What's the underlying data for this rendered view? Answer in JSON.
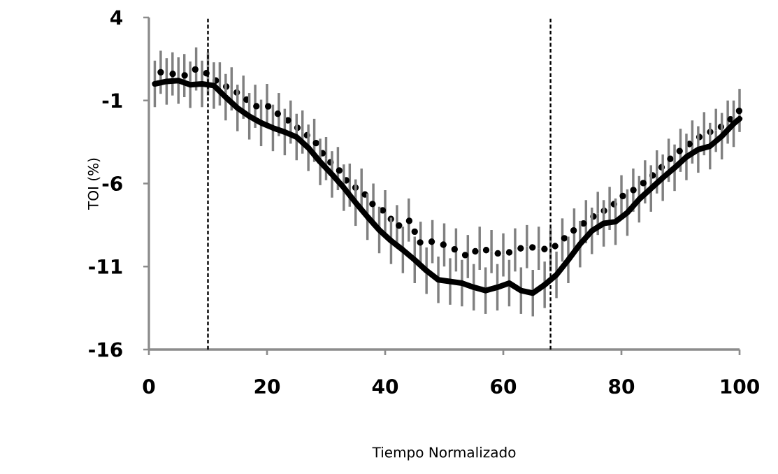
{
  "chart_data": {
    "type": "line",
    "xlabel": "Tiempo Normalizado",
    "ylabel": "TOI (%)",
    "xlim": [
      0,
      100
    ],
    "ylim": [
      -16,
      4
    ],
    "xticks": [
      0,
      20,
      40,
      60,
      80,
      100
    ],
    "yticks": [
      4,
      -1,
      -6,
      -11,
      -16
    ],
    "grid": false,
    "marker": "none",
    "ref_lines": [
      {
        "axis": "x",
        "value": 10,
        "color": "#000000",
        "line_style": "dashed"
      },
      {
        "axis": "x",
        "value": 68,
        "color": "#000000",
        "line_style": "dashed"
      }
    ],
    "series": [
      {
        "color": "#000000",
        "line_style": "dotted",
        "x": [
          2,
          4,
          6,
          8,
          10,
          12,
          14,
          16,
          18,
          20,
          22,
          24,
          26,
          28,
          30,
          32,
          34,
          36,
          38,
          40,
          42,
          44,
          46,
          48,
          50,
          52,
          54,
          56,
          58,
          60,
          62,
          64,
          66,
          68,
          70,
          72,
          74,
          76,
          78,
          80,
          82,
          84,
          86,
          88,
          90,
          92,
          94,
          96,
          98,
          100
        ],
        "values": [
          0.7,
          0.6,
          0.5,
          0.9,
          0.6,
          0.0,
          -0.3,
          -0.8,
          -1.35,
          -1.3,
          -1.85,
          -2.3,
          -2.9,
          -3.4,
          -4.5,
          -5.1,
          -6.1,
          -6.4,
          -7.3,
          -7.7,
          -8.6,
          -8.2,
          -9.6,
          -9.5,
          -9.7,
          -10.0,
          -10.4,
          -9.9,
          -10.1,
          -10.3,
          -10.0,
          -9.8,
          -9.9,
          -10.0,
          -9.4,
          -8.8,
          -8.3,
          -7.8,
          -7.5,
          -6.8,
          -6.4,
          -5.9,
          -5.3,
          -4.6,
          -4.0,
          -3.5,
          -3.0,
          -2.8,
          -2.3,
          -1.6
        ],
        "errors": [
          1.3,
          1.3,
          1.3,
          1.3,
          1.3,
          1.3,
          1.3,
          1.3,
          1.3,
          1.3,
          1.3,
          1.3,
          1.3,
          1.3,
          1.3,
          1.3,
          1.3,
          1.3,
          1.3,
          1.3,
          1.3,
          1.3,
          1.3,
          1.3,
          1.3,
          1.3,
          1.3,
          1.3,
          1.3,
          1.3,
          1.3,
          1.3,
          1.3,
          1.3,
          1.3,
          1.3,
          1.3,
          1.3,
          1.3,
          1.3,
          1.3,
          1.3,
          1.3,
          1.3,
          1.3,
          1.3,
          1.3,
          1.3,
          1.3,
          1.3
        ]
      },
      {
        "color": "#000000",
        "line_style": "solid",
        "x": [
          1,
          3,
          5,
          7,
          9,
          11,
          13,
          15,
          17,
          19,
          21,
          23,
          25,
          27,
          29,
          31,
          33,
          35,
          37,
          39,
          41,
          43,
          45,
          47,
          49,
          51,
          53,
          55,
          57,
          59,
          61,
          63,
          65,
          67,
          69,
          71,
          73,
          75,
          77,
          79,
          81,
          83,
          85,
          87,
          89,
          91,
          93,
          95,
          97,
          99,
          100
        ],
        "values": [
          0.0,
          0.15,
          0.2,
          -0.05,
          0.0,
          -0.1,
          -0.8,
          -1.45,
          -1.95,
          -2.35,
          -2.65,
          -2.9,
          -3.2,
          -3.85,
          -4.7,
          -5.45,
          -6.25,
          -7.15,
          -8.0,
          -8.8,
          -9.45,
          -10.0,
          -10.6,
          -11.25,
          -11.8,
          -11.9,
          -12.0,
          -12.25,
          -12.45,
          -12.25,
          -12.0,
          -12.45,
          -12.6,
          -12.1,
          -11.5,
          -10.6,
          -9.65,
          -8.85,
          -8.4,
          -8.3,
          -7.75,
          -6.95,
          -6.3,
          -5.65,
          -5.05,
          -4.4,
          -3.95,
          -3.75,
          -3.15,
          -2.4,
          -2.1
        ],
        "errors": [
          1.4,
          1.4,
          1.4,
          1.4,
          1.4,
          1.4,
          1.4,
          1.4,
          1.4,
          1.4,
          1.4,
          1.4,
          1.4,
          1.4,
          1.4,
          1.4,
          1.4,
          1.4,
          1.4,
          1.4,
          1.4,
          1.4,
          1.4,
          1.4,
          1.4,
          1.4,
          1.4,
          1.4,
          1.4,
          1.4,
          1.4,
          1.4,
          1.4,
          1.4,
          1.4,
          1.4,
          1.4,
          1.4,
          1.4,
          1.4,
          1.4,
          1.4,
          1.4,
          1.4,
          1.4,
          1.4,
          1.4,
          1.4,
          1.4,
          1.4,
          null
        ]
      }
    ]
  }
}
